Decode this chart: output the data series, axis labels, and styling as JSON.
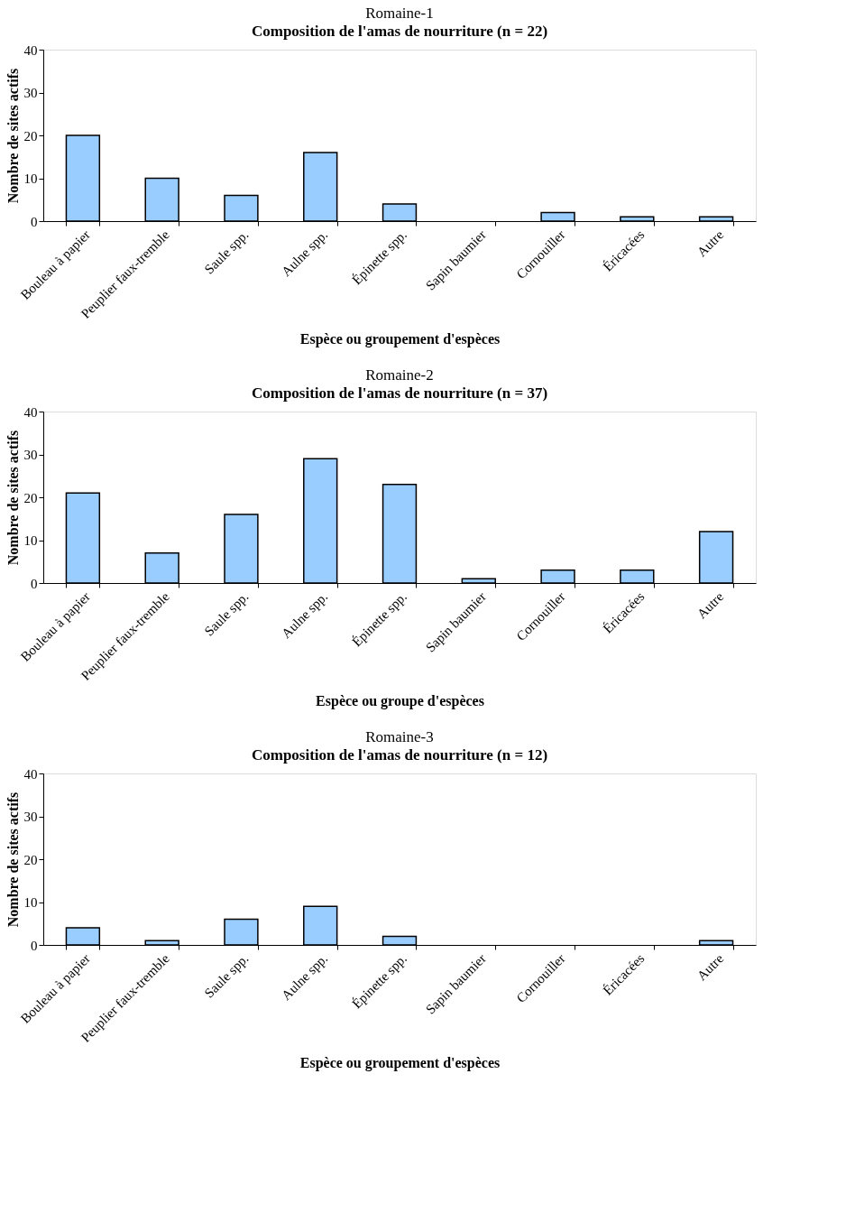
{
  "chart_data": [
    {
      "type": "bar",
      "title": "Romaine-1",
      "subtitle": "Composition de l'amas de nourriture (n = 22)",
      "xlabel": "Espèce ou groupement d'espèces",
      "ylabel": "Nombre de sites actifs",
      "categories": [
        "Bouleau à papier",
        "Peuplier faux-tremble",
        "Saule spp.",
        "Aulne spp.",
        "Épinette spp.",
        "Sapin baumier",
        "Cornouiller",
        "Éricacées",
        "Autre"
      ],
      "values": [
        20,
        10,
        6,
        16,
        4,
        0,
        2,
        1,
        1
      ],
      "color": "#99ccff",
      "ylim": [
        0,
        40
      ],
      "yticks": [
        0,
        10,
        20,
        30,
        40
      ],
      "grid": false
    },
    {
      "type": "bar",
      "title": "Romaine-2",
      "subtitle": "Composition de l'amas de nourriture (n = 37)",
      "xlabel": "Espèce ou groupe d'espèces",
      "ylabel": "Nombre de sites actifs",
      "categories": [
        "Bouleau à papier",
        "Peuplier faux-tremble",
        "Saule spp.",
        "Aulne spp.",
        "Épinette spp.",
        "Sapin baumier",
        "Cornouiller",
        "Éricacées",
        "Autre"
      ],
      "values": [
        21,
        7,
        16,
        29,
        23,
        1,
        3,
        3,
        12
      ],
      "color": "#99ccff",
      "ylim": [
        0,
        40
      ],
      "yticks": [
        0,
        10,
        20,
        30,
        40
      ],
      "grid": false
    },
    {
      "type": "bar",
      "title": "Romaine-3",
      "subtitle": "Composition de l'amas de nourriture (n = 12)",
      "xlabel": "Espèce ou groupement d'espèces",
      "ylabel": "Nombre de sites actifs",
      "categories": [
        "Bouleau à papier",
        "Peuplier faux-tremble",
        "Saule spp.",
        "Aulne spp.",
        "Épinette spp.",
        "Sapin baumier",
        "Cornouiller",
        "Éricacées",
        "Autre"
      ],
      "values": [
        4,
        1,
        6,
        9,
        2,
        0,
        0,
        0,
        1
      ],
      "color": "#99ccff",
      "ylim": [
        0,
        40
      ],
      "yticks": [
        0,
        10,
        20,
        30,
        40
      ],
      "grid": false
    }
  ]
}
